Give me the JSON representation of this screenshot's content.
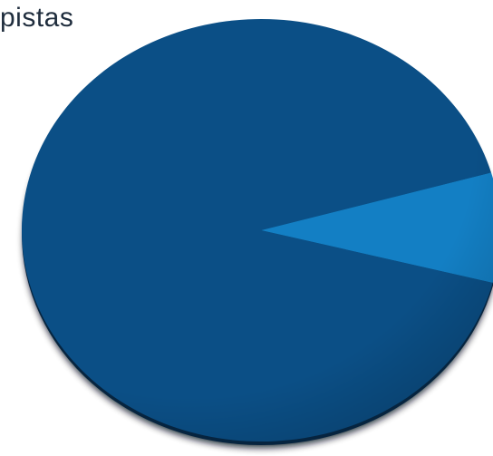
{
  "chart_data": {
    "type": "pie",
    "title": "pistas",
    "categories": [
      "",
      ""
    ],
    "values": [
      91.6,
      8.4
    ],
    "colors": [
      "#0b4f86",
      "#137fc4"
    ],
    "legend": "none"
  }
}
